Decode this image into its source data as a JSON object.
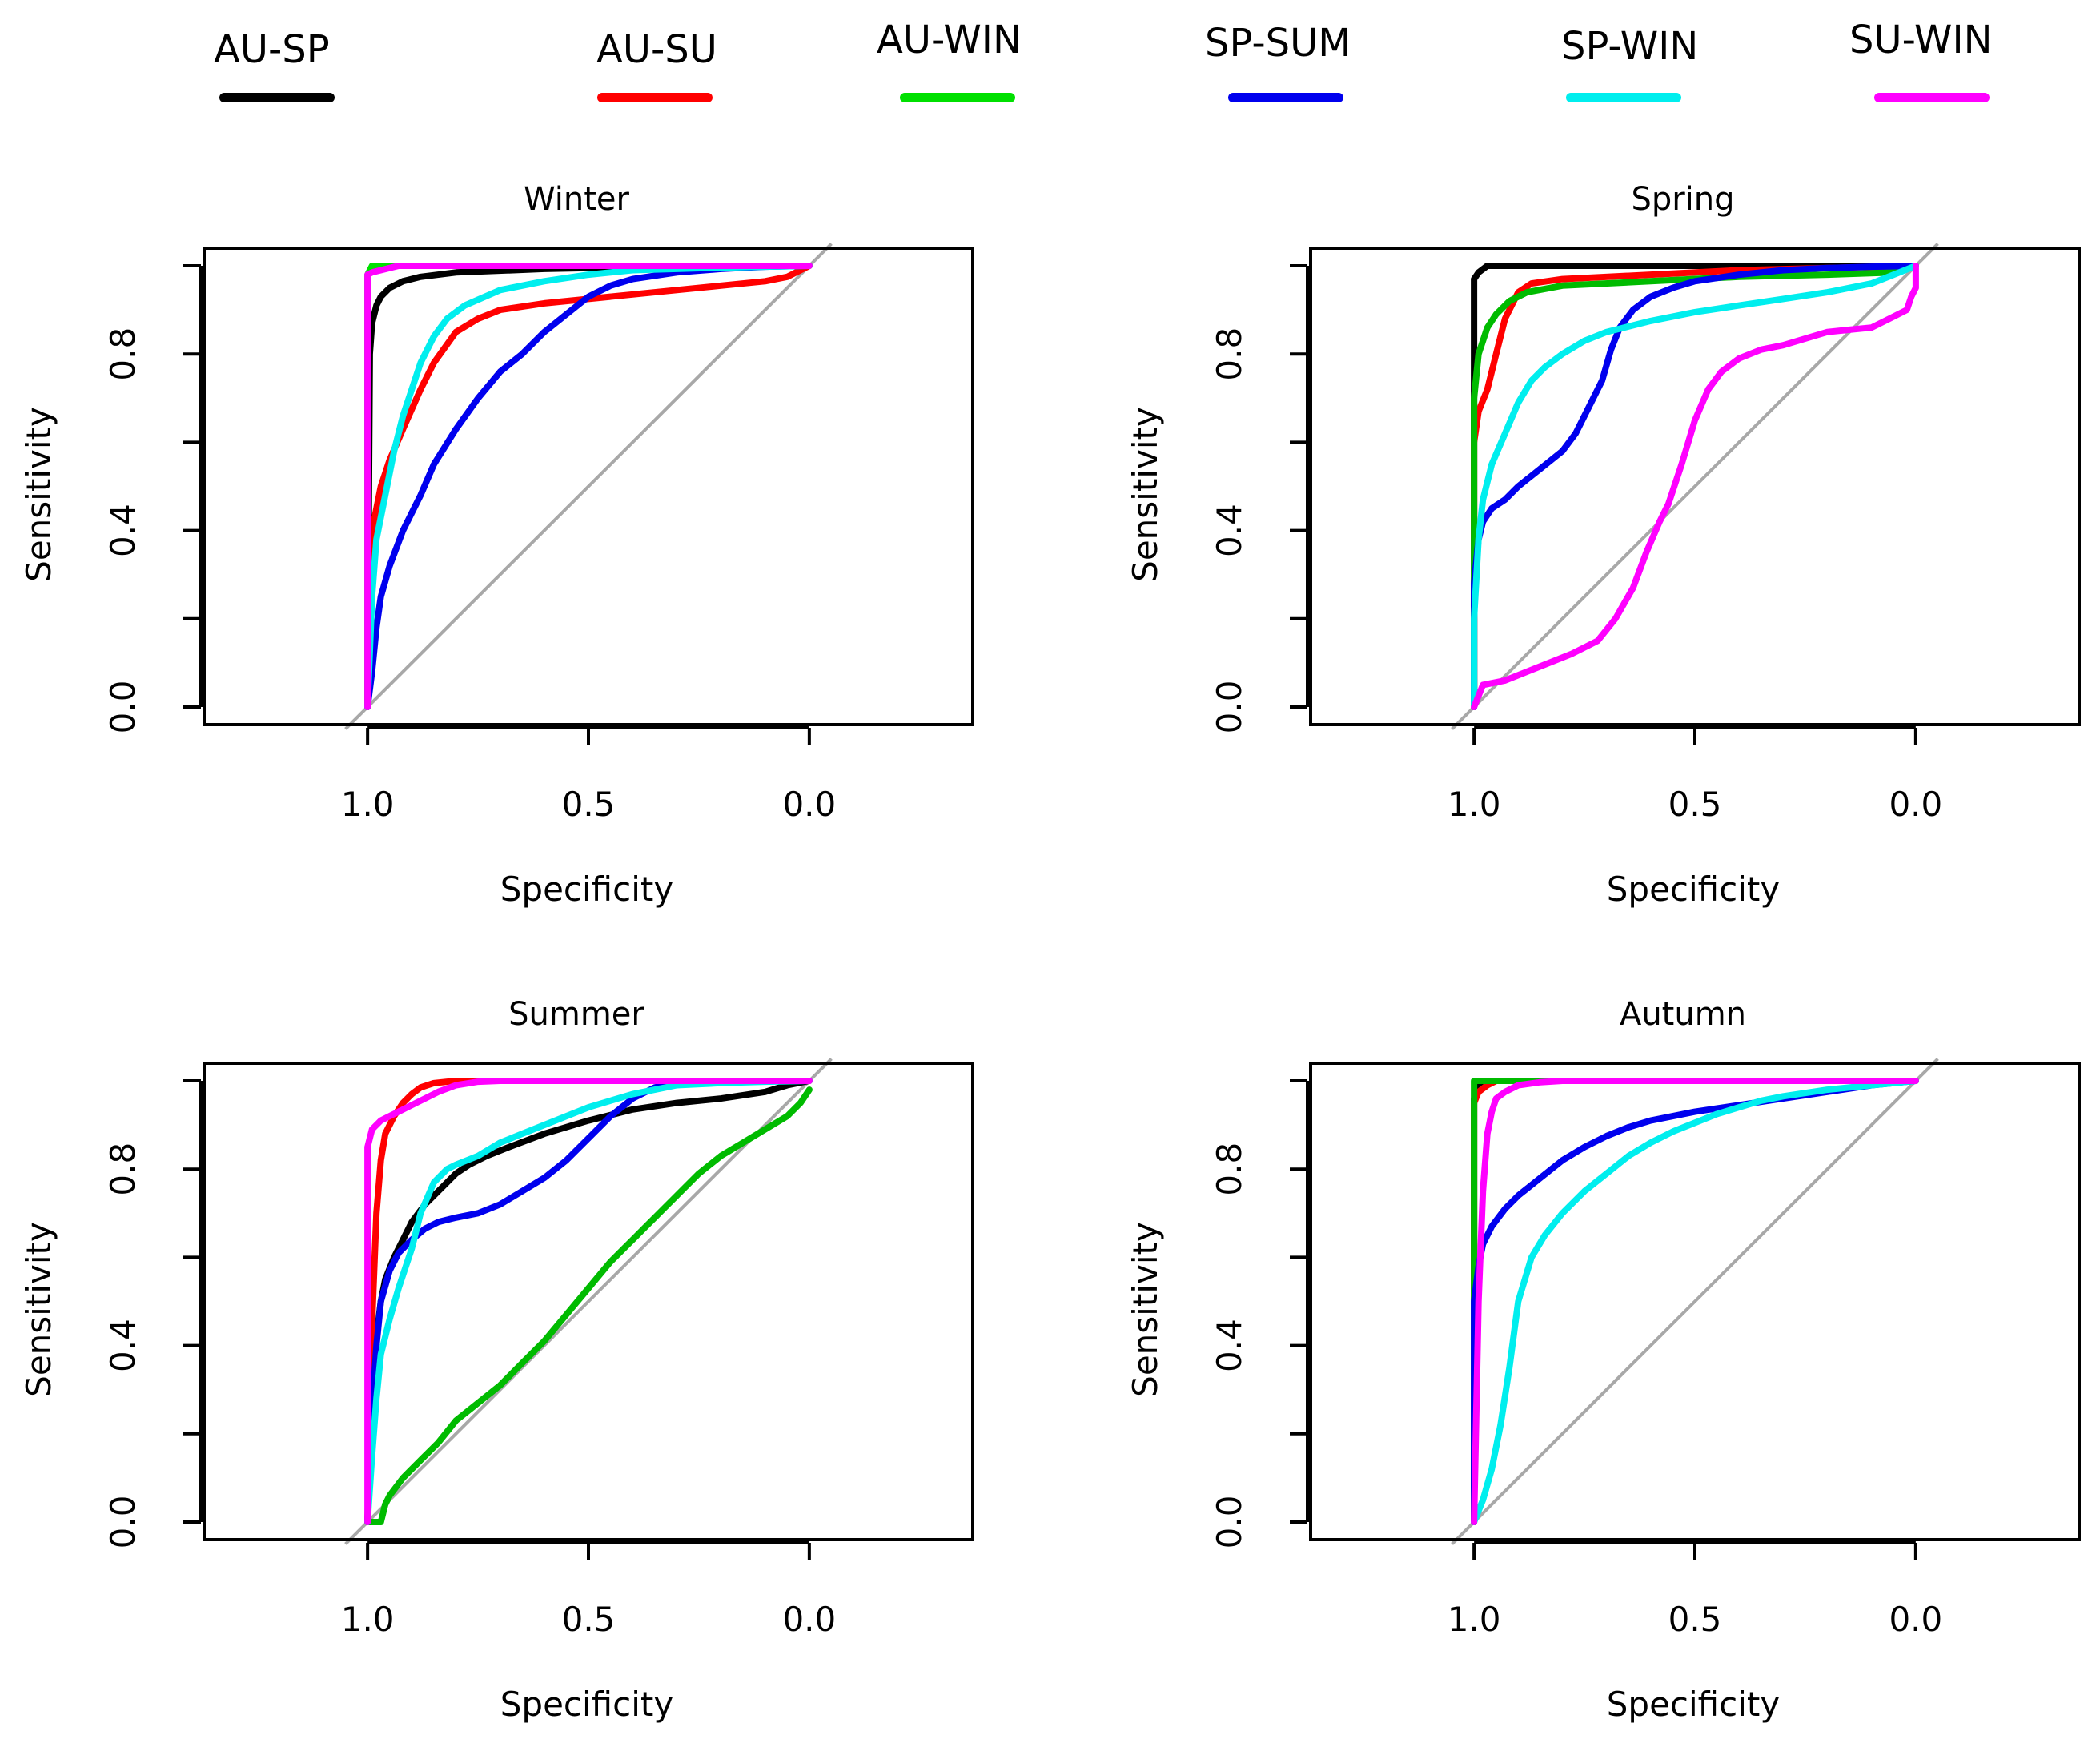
{
  "legend": [
    {
      "label": "AU-SP",
      "color": "#000000"
    },
    {
      "label": "AU-SU",
      "color": "#ff0000"
    },
    {
      "label": "AU-WIN",
      "color": "#00e000"
    },
    {
      "label": "SP-SUM",
      "color": "#0000ee"
    },
    {
      "label": "SP-WIN",
      "color": "#00eeee"
    },
    {
      "label": "SU-WIN",
      "color": "#ff00ff"
    }
  ],
  "chart_data": [
    {
      "type": "line",
      "title": "Winter",
      "xlabel": "Specificity",
      "ylabel": "Sensitivity",
      "xlim": [
        1.37,
        -0.37
      ],
      "ylim": [
        -0.04,
        1.04
      ],
      "xticks": [
        1.0,
        0.5,
        0.0
      ],
      "xtick_labels": [
        "1.0",
        "0.5",
        "0.0"
      ],
      "yticks": [
        0.0,
        0.2,
        0.4,
        0.6,
        0.8,
        1.0
      ],
      "ytick_labels": [
        "0.0",
        "",
        "0.4",
        "",
        "0.8",
        ""
      ],
      "series": [
        {
          "name": "AU-SP",
          "color": "#000000",
          "x": [
            1.0,
            0.995,
            0.99,
            0.98,
            0.97,
            0.95,
            0.92,
            0.88,
            0.8,
            0.6,
            0.4,
            0.0
          ],
          "y": [
            0.0,
            0.8,
            0.87,
            0.91,
            0.93,
            0.95,
            0.965,
            0.975,
            0.985,
            0.993,
            0.997,
            1.0
          ]
        },
        {
          "name": "AU-SU",
          "color": "#ff0000",
          "x": [
            1.0,
            0.99,
            0.97,
            0.95,
            0.92,
            0.88,
            0.85,
            0.8,
            0.75,
            0.7,
            0.6,
            0.5,
            0.4,
            0.3,
            0.2,
            0.1,
            0.05,
            0.02,
            0.0
          ],
          "y": [
            0.0,
            0.4,
            0.5,
            0.56,
            0.63,
            0.72,
            0.78,
            0.85,
            0.88,
            0.9,
            0.915,
            0.925,
            0.935,
            0.945,
            0.955,
            0.965,
            0.975,
            0.99,
            1.0
          ]
        },
        {
          "name": "AU-WIN",
          "color": "#00e000",
          "x": [
            1.0,
            1.0,
            0.99,
            0.0
          ],
          "y": [
            0.0,
            0.98,
            1.0,
            1.0
          ]
        },
        {
          "name": "SP-SUM",
          "color": "#0000ee",
          "x": [
            1.0,
            0.99,
            0.98,
            0.97,
            0.95,
            0.92,
            0.88,
            0.85,
            0.8,
            0.75,
            0.7,
            0.65,
            0.6,
            0.55,
            0.5,
            0.45,
            0.4,
            0.3,
            0.2,
            0.1,
            0.0
          ],
          "y": [
            0.0,
            0.08,
            0.18,
            0.25,
            0.32,
            0.4,
            0.48,
            0.55,
            0.63,
            0.7,
            0.76,
            0.8,
            0.85,
            0.89,
            0.93,
            0.955,
            0.97,
            0.985,
            0.993,
            0.998,
            1.0
          ]
        },
        {
          "name": "SP-WIN",
          "color": "#00eeee",
          "x": [
            1.0,
            0.99,
            0.98,
            0.96,
            0.94,
            0.92,
            0.9,
            0.88,
            0.85,
            0.82,
            0.78,
            0.7,
            0.6,
            0.5,
            0.4,
            0.3,
            0.2,
            0.1,
            0.0
          ],
          "y": [
            0.0,
            0.25,
            0.38,
            0.48,
            0.58,
            0.66,
            0.72,
            0.78,
            0.84,
            0.88,
            0.91,
            0.945,
            0.965,
            0.98,
            0.99,
            0.993,
            0.996,
            0.998,
            1.0
          ]
        },
        {
          "name": "SU-WIN",
          "color": "#ff00ff",
          "x": [
            1.0,
            1.0,
            0.99,
            0.97,
            0.93,
            0.0
          ],
          "y": [
            0.0,
            0.98,
            0.985,
            0.99,
            1.0,
            1.0
          ]
        }
      ]
    },
    {
      "type": "line",
      "title": "Spring",
      "xlabel": "Specificity",
      "ylabel": "Sensitivity",
      "xlim": [
        1.37,
        -0.37
      ],
      "ylim": [
        -0.04,
        1.04
      ],
      "xticks": [
        1.0,
        0.5,
        0.0
      ],
      "xtick_labels": [
        "1.0",
        "0.5",
        "0.0"
      ],
      "yticks": [
        0.0,
        0.2,
        0.4,
        0.6,
        0.8,
        1.0
      ],
      "ytick_labels": [
        "0.0",
        "",
        "0.4",
        "",
        "0.8",
        ""
      ],
      "series": [
        {
          "name": "AU-SP",
          "color": "#000000",
          "x": [
            1.0,
            1.0,
            0.99,
            0.97,
            0.9,
            0.0
          ],
          "y": [
            0.0,
            0.97,
            0.985,
            1.0,
            1.0,
            1.0
          ]
        },
        {
          "name": "AU-SU",
          "color": "#ff0000",
          "x": [
            1.0,
            1.0,
            0.99,
            0.97,
            0.95,
            0.93,
            0.9,
            0.87,
            0.8,
            0.6,
            0.4,
            0.2,
            0.0
          ],
          "y": [
            0.0,
            0.6,
            0.67,
            0.72,
            0.8,
            0.88,
            0.94,
            0.96,
            0.97,
            0.98,
            0.99,
            0.995,
            1.0
          ]
        },
        {
          "name": "AU-WIN",
          "color": "#00bb00",
          "x": [
            1.0,
            1.0,
            0.99,
            0.97,
            0.95,
            0.92,
            0.88,
            0.8,
            0.6,
            0.4,
            0.2,
            0.05,
            0.0
          ],
          "y": [
            0.0,
            0.7,
            0.8,
            0.86,
            0.89,
            0.92,
            0.94,
            0.955,
            0.965,
            0.975,
            0.98,
            0.985,
            1.0
          ]
        },
        {
          "name": "SP-SUM",
          "color": "#0000ee",
          "x": [
            1.0,
            1.0,
            0.99,
            0.98,
            0.96,
            0.93,
            0.9,
            0.85,
            0.8,
            0.77,
            0.74,
            0.71,
            0.69,
            0.67,
            0.64,
            0.6,
            0.55,
            0.5,
            0.4,
            0.3,
            0.2,
            0.1,
            0.0
          ],
          "y": [
            0.0,
            0.28,
            0.38,
            0.42,
            0.45,
            0.47,
            0.5,
            0.54,
            0.58,
            0.62,
            0.68,
            0.74,
            0.81,
            0.86,
            0.9,
            0.93,
            0.95,
            0.965,
            0.98,
            0.99,
            0.995,
            0.998,
            1.0
          ]
        },
        {
          "name": "SP-WIN",
          "color": "#00eeee",
          "x": [
            1.0,
            1.0,
            0.99,
            0.98,
            0.96,
            0.93,
            0.9,
            0.87,
            0.84,
            0.8,
            0.75,
            0.7,
            0.6,
            0.5,
            0.4,
            0.3,
            0.2,
            0.1,
            0.05,
            0.0
          ],
          "y": [
            0.0,
            0.2,
            0.38,
            0.47,
            0.55,
            0.62,
            0.69,
            0.74,
            0.77,
            0.8,
            0.83,
            0.85,
            0.875,
            0.895,
            0.91,
            0.925,
            0.94,
            0.96,
            0.98,
            1.0
          ]
        },
        {
          "name": "SU-WIN",
          "color": "#ff00ff",
          "x": [
            1.0,
            0.98,
            0.93,
            0.88,
            0.83,
            0.78,
            0.72,
            0.68,
            0.64,
            0.61,
            0.58,
            0.56,
            0.53,
            0.5,
            0.47,
            0.44,
            0.4,
            0.35,
            0.3,
            0.25,
            0.2,
            0.15,
            0.1,
            0.05,
            0.02,
            0.01,
            0.0,
            0.0
          ],
          "y": [
            0.0,
            0.05,
            0.06,
            0.08,
            0.1,
            0.12,
            0.15,
            0.2,
            0.27,
            0.35,
            0.42,
            0.46,
            0.55,
            0.65,
            0.72,
            0.76,
            0.79,
            0.81,
            0.82,
            0.835,
            0.85,
            0.855,
            0.86,
            0.885,
            0.9,
            0.93,
            0.95,
            1.0
          ]
        }
      ]
    },
    {
      "type": "line",
      "title": "Summer",
      "xlabel": "Specificity",
      "ylabel": "Sensitivity",
      "xlim": [
        1.37,
        -0.37
      ],
      "ylim": [
        -0.04,
        1.04
      ],
      "xticks": [
        1.0,
        0.5,
        0.0
      ],
      "xtick_labels": [
        "1.0",
        "0.5",
        "0.0"
      ],
      "yticks": [
        0.0,
        0.2,
        0.4,
        0.6,
        0.8,
        1.0
      ],
      "ytick_labels": [
        "0.0",
        "",
        "0.4",
        "",
        "0.8",
        ""
      ],
      "series": [
        {
          "name": "AU-SP",
          "color": "#000000",
          "x": [
            1.0,
            0.99,
            0.98,
            0.97,
            0.96,
            0.94,
            0.92,
            0.9,
            0.87,
            0.83,
            0.8,
            0.77,
            0.73,
            0.68,
            0.6,
            0.5,
            0.4,
            0.3,
            0.2,
            0.1,
            0.05,
            0.0
          ],
          "y": [
            0.0,
            0.3,
            0.42,
            0.5,
            0.55,
            0.6,
            0.64,
            0.68,
            0.72,
            0.76,
            0.79,
            0.81,
            0.83,
            0.85,
            0.88,
            0.91,
            0.935,
            0.95,
            0.96,
            0.975,
            0.99,
            1.0
          ]
        },
        {
          "name": "AU-SU",
          "color": "#ff0000",
          "x": [
            1.0,
            0.99,
            0.98,
            0.97,
            0.96,
            0.94,
            0.92,
            0.9,
            0.88,
            0.85,
            0.8,
            0.0
          ],
          "y": [
            0.0,
            0.45,
            0.7,
            0.82,
            0.88,
            0.92,
            0.95,
            0.97,
            0.985,
            0.995,
            1.0,
            1.0
          ]
        },
        {
          "name": "AU-WIN",
          "color": "#00bb00",
          "x": [
            1.0,
            0.97,
            0.96,
            0.95,
            0.92,
            0.88,
            0.84,
            0.8,
            0.75,
            0.7,
            0.65,
            0.6,
            0.55,
            0.5,
            0.45,
            0.4,
            0.35,
            0.3,
            0.25,
            0.2,
            0.15,
            0.1,
            0.05,
            0.02,
            0.0
          ],
          "y": [
            0.0,
            0.0,
            0.04,
            0.06,
            0.1,
            0.14,
            0.18,
            0.23,
            0.27,
            0.31,
            0.36,
            0.41,
            0.47,
            0.53,
            0.59,
            0.64,
            0.69,
            0.74,
            0.79,
            0.83,
            0.86,
            0.89,
            0.92,
            0.95,
            0.98
          ]
        },
        {
          "name": "SP-SUM",
          "color": "#0000ee",
          "x": [
            1.0,
            0.99,
            0.98,
            0.97,
            0.95,
            0.93,
            0.9,
            0.87,
            0.84,
            0.8,
            0.75,
            0.7,
            0.65,
            0.6,
            0.55,
            0.5,
            0.45,
            0.4,
            0.35,
            0.3,
            0.2,
            0.1,
            0.0
          ],
          "y": [
            0.0,
            0.25,
            0.4,
            0.5,
            0.57,
            0.61,
            0.64,
            0.665,
            0.68,
            0.69,
            0.7,
            0.72,
            0.75,
            0.78,
            0.82,
            0.87,
            0.92,
            0.96,
            0.985,
            0.995,
            0.998,
            0.999,
            1.0
          ]
        },
        {
          "name": "SP-WIN",
          "color": "#00eeee",
          "x": [
            1.0,
            0.99,
            0.98,
            0.97,
            0.95,
            0.93,
            0.9,
            0.88,
            0.85,
            0.82,
            0.8,
            0.75,
            0.7,
            0.65,
            0.6,
            0.55,
            0.5,
            0.45,
            0.4,
            0.35,
            0.3,
            0.2,
            0.1,
            0.0
          ],
          "y": [
            0.0,
            0.15,
            0.28,
            0.38,
            0.46,
            0.53,
            0.62,
            0.7,
            0.77,
            0.8,
            0.81,
            0.83,
            0.86,
            0.88,
            0.9,
            0.92,
            0.94,
            0.955,
            0.97,
            0.98,
            0.99,
            0.995,
            0.998,
            1.0
          ]
        },
        {
          "name": "SU-WIN",
          "color": "#ff00ff",
          "x": [
            1.0,
            1.0,
            0.99,
            0.97,
            0.95,
            0.92,
            0.88,
            0.84,
            0.8,
            0.75,
            0.7,
            0.0
          ],
          "y": [
            0.0,
            0.85,
            0.89,
            0.91,
            0.92,
            0.935,
            0.955,
            0.975,
            0.99,
            0.998,
            1.0,
            1.0
          ]
        }
      ]
    },
    {
      "type": "line",
      "title": "Autumn",
      "xlabel": "Specificity",
      "ylabel": "Sensitivity",
      "xlim": [
        1.37,
        -0.37
      ],
      "ylim": [
        -0.04,
        1.04
      ],
      "xticks": [
        1.0,
        0.5,
        0.0
      ],
      "xtick_labels": [
        "1.0",
        "0.5",
        "0.0"
      ],
      "yticks": [
        0.0,
        0.2,
        0.4,
        0.6,
        0.8,
        1.0
      ],
      "ytick_labels": [
        "0.0",
        "",
        "0.4",
        "",
        "0.8",
        ""
      ],
      "series": [
        {
          "name": "AU-SP",
          "color": "#000000",
          "x": [
            1.0,
            1.0,
            0.99,
            0.98,
            0.0
          ],
          "y": [
            0.0,
            0.96,
            0.985,
            1.0,
            1.0
          ]
        },
        {
          "name": "AU-SU",
          "color": "#ff0000",
          "x": [
            1.0,
            1.0,
            0.99,
            0.97,
            0.95,
            0.0
          ],
          "y": [
            0.0,
            0.95,
            0.975,
            0.99,
            1.0,
            1.0
          ]
        },
        {
          "name": "AU-WIN",
          "color": "#00bb00",
          "x": [
            1.0,
            1.0,
            0.99,
            0.95,
            0.85,
            0.0
          ],
          "y": [
            0.0,
            1.0,
            1.0,
            1.0,
            1.0,
            1.0
          ]
        },
        {
          "name": "SP-SUM",
          "color": "#0000ee",
          "x": [
            1.0,
            1.0,
            0.99,
            0.98,
            0.96,
            0.93,
            0.9,
            0.85,
            0.8,
            0.75,
            0.7,
            0.65,
            0.6,
            0.5,
            0.4,
            0.3,
            0.2,
            0.1,
            0.0
          ],
          "y": [
            0.0,
            0.5,
            0.58,
            0.63,
            0.67,
            0.71,
            0.74,
            0.78,
            0.82,
            0.85,
            0.875,
            0.895,
            0.91,
            0.93,
            0.945,
            0.96,
            0.975,
            0.99,
            1.0
          ]
        },
        {
          "name": "SP-WIN",
          "color": "#00eeee",
          "x": [
            1.0,
            0.98,
            0.96,
            0.94,
            0.92,
            0.9,
            0.87,
            0.84,
            0.8,
            0.75,
            0.7,
            0.65,
            0.6,
            0.55,
            0.5,
            0.45,
            0.4,
            0.35,
            0.3,
            0.2,
            0.1,
            0.0
          ],
          "y": [
            0.0,
            0.05,
            0.12,
            0.22,
            0.35,
            0.5,
            0.6,
            0.65,
            0.7,
            0.75,
            0.79,
            0.83,
            0.86,
            0.885,
            0.905,
            0.925,
            0.94,
            0.955,
            0.965,
            0.98,
            0.99,
            1.0
          ]
        },
        {
          "name": "SU-WIN",
          "color": "#ff00ff",
          "x": [
            1.0,
            0.99,
            0.98,
            0.97,
            0.96,
            0.95,
            0.93,
            0.9,
            0.85,
            0.8,
            0.0
          ],
          "y": [
            0.0,
            0.5,
            0.75,
            0.88,
            0.93,
            0.96,
            0.975,
            0.99,
            0.997,
            1.0,
            1.0
          ]
        }
      ]
    }
  ]
}
